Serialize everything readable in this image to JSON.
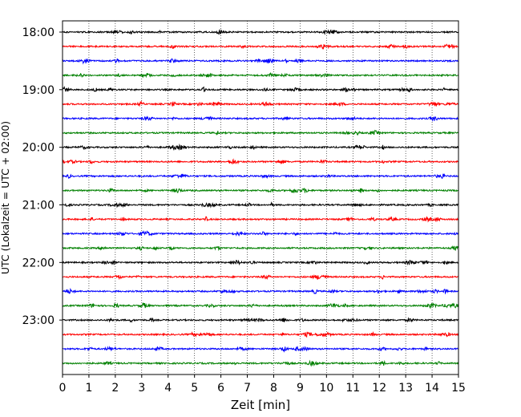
{
  "chart_data": {
    "type": "line",
    "title": "",
    "xlabel": "Zeit  [min]",
    "ylabel": "UTC (Lokalzeit = UTC + 02:00)",
    "xlim": [
      0,
      15
    ],
    "x_ticks": [
      "0",
      "1",
      "2",
      "3",
      "4",
      "5",
      "6",
      "7",
      "8",
      "9",
      "10",
      "11",
      "12",
      "13",
      "14",
      "15"
    ],
    "y_tick_labels": [
      "18:00",
      "19:00",
      "20:00",
      "21:00",
      "22:00",
      "23:00"
    ],
    "grid": "vertical dotted",
    "trace_start": "18:00",
    "trace_interval_min": 15,
    "trace_count": 24,
    "trace_colors": [
      "#000000",
      "#ff0000",
      "#0000ff",
      "#008000"
    ]
  }
}
